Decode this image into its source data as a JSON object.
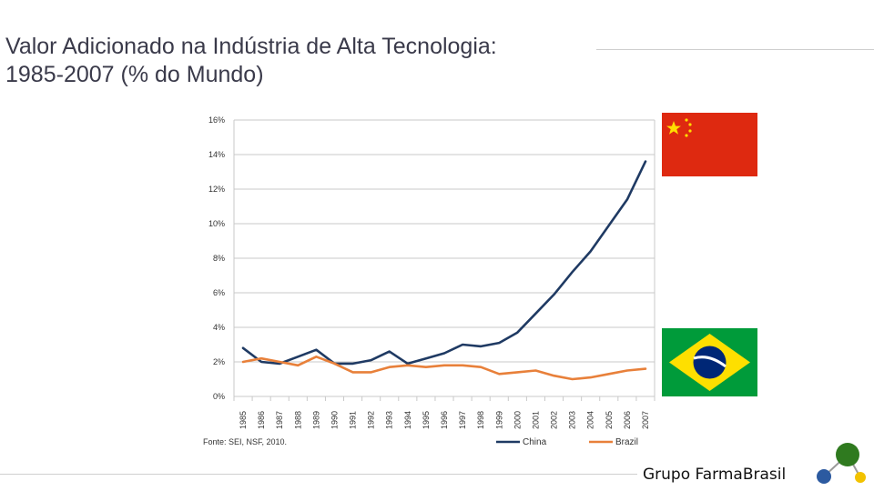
{
  "slide": {
    "title_line1": "Valor Adicionado na Indústria de Alta Tecnologia:",
    "title_line2": "1985-2007 (% do Mundo)",
    "brand": "Grupo FarmaBrasil"
  },
  "colors": {
    "china": "#1f3a63",
    "brazil": "#e8803a",
    "grid": "#c9c9c9",
    "china_flag": "#de2910",
    "china_star": "#ffde00",
    "brazil_flag_green": "#009b3a",
    "brazil_flag_yellow": "#fedf00",
    "brazil_flag_blue": "#002776"
  },
  "flags": [
    "china-flag",
    "brazil-flag"
  ],
  "chart_data": {
    "type": "line",
    "x": [
      "1985",
      "1986",
      "1987",
      "1988",
      "1989",
      "1990",
      "1991",
      "1992",
      "1993",
      "1994",
      "1995",
      "1996",
      "1997",
      "1998",
      "1999",
      "2000",
      "2001",
      "2002",
      "2003",
      "2004",
      "2005",
      "2006",
      "2007"
    ],
    "series": [
      {
        "name": "China",
        "values": [
          2.8,
          2.0,
          1.9,
          2.3,
          2.7,
          1.9,
          1.9,
          2.1,
          2.6,
          1.9,
          2.2,
          2.5,
          3.0,
          2.9,
          3.1,
          3.7,
          4.8,
          5.9,
          7.2,
          8.4,
          9.9,
          11.4,
          13.6
        ]
      },
      {
        "name": "Brazil",
        "values": [
          2.0,
          2.2,
          2.0,
          1.8,
          2.3,
          1.9,
          1.4,
          1.4,
          1.7,
          1.8,
          1.7,
          1.8,
          1.8,
          1.7,
          1.3,
          1.4,
          1.5,
          1.2,
          1.0,
          1.1,
          1.3,
          1.5,
          1.6
        ]
      }
    ],
    "yticks": [
      "0%",
      "2%",
      "4%",
      "6%",
      "8%",
      "10%",
      "12%",
      "14%",
      "16%"
    ],
    "ylim": [
      0,
      16
    ],
    "grid": true,
    "legend_position": "bottom",
    "source": "Fonte: SEI, NSF, 2010."
  }
}
